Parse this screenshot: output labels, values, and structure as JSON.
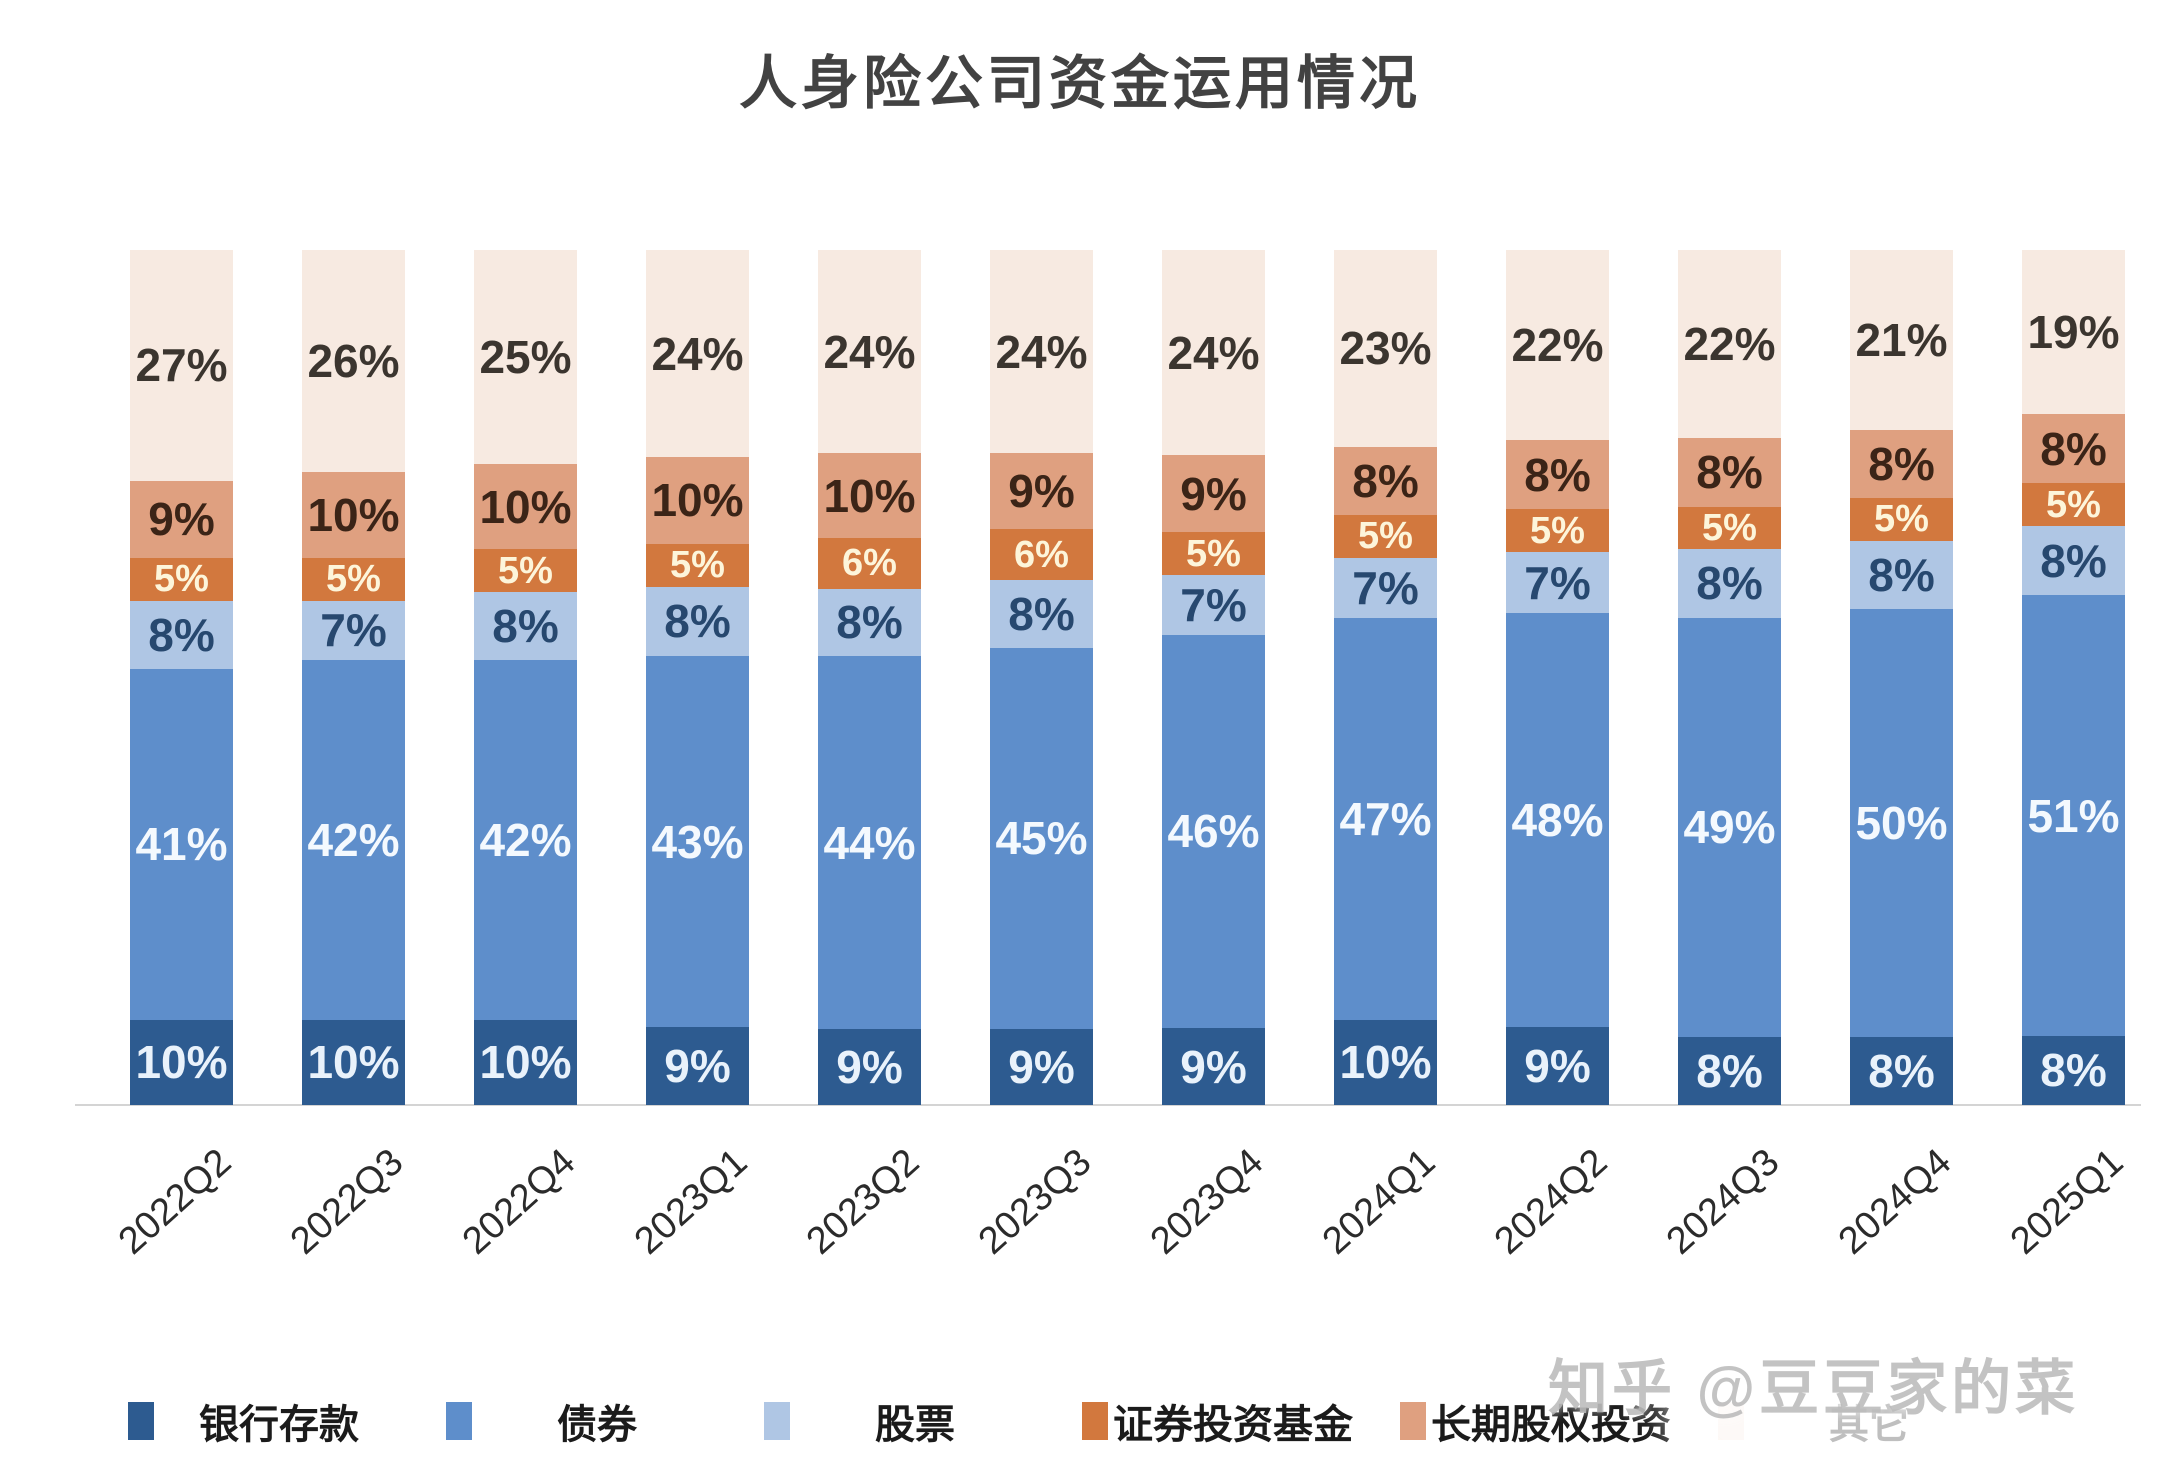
{
  "page": {
    "background": "#ffffff"
  },
  "watermark": {
    "text": "知乎 @豆豆家的菜",
    "color": "#bdbdbd"
  },
  "chart_data": {
    "type": "bar",
    "stacked": "100-percent",
    "title": "人身险公司资金运用情况",
    "categories": [
      "2022Q2",
      "2022Q3",
      "2022Q4",
      "2023Q1",
      "2023Q2",
      "2023Q3",
      "2023Q4",
      "2024Q1",
      "2024Q2",
      "2024Q3",
      "2024Q4",
      "2025Q1"
    ],
    "series_order": "bottom-to-top",
    "series": [
      {
        "name": "银行存款",
        "color": "#2d5b90",
        "label_color": "#e9f2fb",
        "values": [
          10,
          10,
          10,
          9,
          9,
          9,
          9,
          10,
          9,
          8,
          8,
          8
        ]
      },
      {
        "name": "债券",
        "color": "#5e8ecb",
        "label_color": "#f4f9fe",
        "values": [
          41,
          42,
          42,
          43,
          44,
          45,
          46,
          47,
          48,
          49,
          50,
          51
        ]
      },
      {
        "name": "股票",
        "color": "#afc6e4",
        "label_color": "#27486f",
        "values": [
          8,
          7,
          8,
          8,
          8,
          8,
          7,
          7,
          7,
          8,
          8,
          8
        ]
      },
      {
        "name": "证券投资基金",
        "color": "#d2783e",
        "label_color": "#fdf5da",
        "values": [
          5,
          5,
          5,
          5,
          6,
          6,
          5,
          5,
          5,
          5,
          5,
          5
        ]
      },
      {
        "name": "长期股权投资",
        "color": "#dfa080",
        "label_color": "#3b2417",
        "values": [
          9,
          10,
          10,
          10,
          10,
          9,
          9,
          8,
          8,
          8,
          8,
          8
        ]
      },
      {
        "name": "其它",
        "color": "#f7eae1",
        "label_color": "#3b352f",
        "values": [
          27,
          26,
          25,
          24,
          24,
          24,
          24,
          23,
          22,
          22,
          21,
          19
        ]
      }
    ],
    "value_label_format": "{v}%",
    "ylim": [
      0,
      100
    ],
    "grid": false,
    "legend_position": "bottom",
    "x_tick_rotation_deg": -42
  }
}
